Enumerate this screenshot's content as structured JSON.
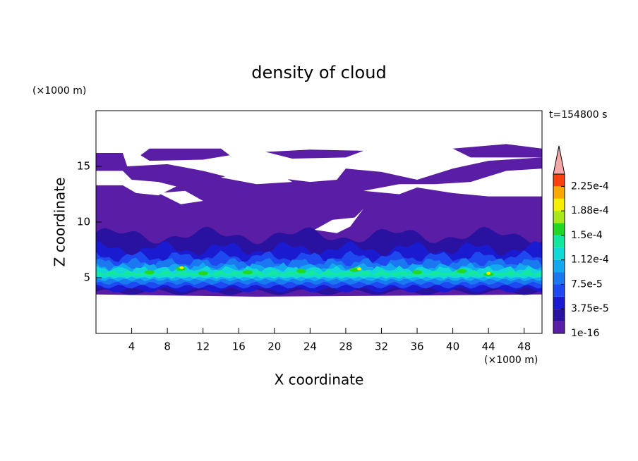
{
  "chart_data": {
    "type": "contour",
    "title": "density of cloud",
    "xlabel": "X coordinate",
    "ylabel": "Z coordinate",
    "xunit": "(×1000 m)",
    "yunit": "(×1000 m)",
    "time_label": "t=154800 s",
    "xlim": [
      0,
      50
    ],
    "ylim": [
      0,
      20
    ],
    "xticks": [
      4,
      8,
      12,
      16,
      20,
      24,
      28,
      32,
      36,
      40,
      44,
      48
    ],
    "yticks": [
      5,
      10,
      15
    ],
    "colorbar": {
      "levels": [
        1e-16,
        1.875e-05,
        3.75e-05,
        5.625e-05,
        7.5e-05,
        9.375e-05,
        0.0001125,
        0.00013125,
        0.00015,
        0.00016875,
        0.0001875,
        0.00020625,
        0.000225,
        0.00024375
      ],
      "colors": [
        "#5a1ea6",
        "#2a12a0",
        "#1a1ad0",
        "#1e48f0",
        "#1a78f0",
        "#14a8f0",
        "#12d8d8",
        "#14e8a0",
        "#22d822",
        "#a8e81c",
        "#f4f000",
        "#f8a800",
        "#f84010"
      ],
      "extend_color": "#f4a8a8",
      "ticks": [
        {
          "value": 1e-16,
          "label": "1e-16"
        },
        {
          "value": 3.75e-05,
          "label": "3.75e-5"
        },
        {
          "value": 7.5e-05,
          "label": "7.5e-5"
        },
        {
          "value": 0.0001125,
          "label": "1.12e-4"
        },
        {
          "value": 0.00015,
          "label": "1.5e-4"
        },
        {
          "value": 0.0001875,
          "label": "1.88e-4"
        },
        {
          "value": 0.000225,
          "label": "2.25e-4"
        }
      ]
    }
  }
}
